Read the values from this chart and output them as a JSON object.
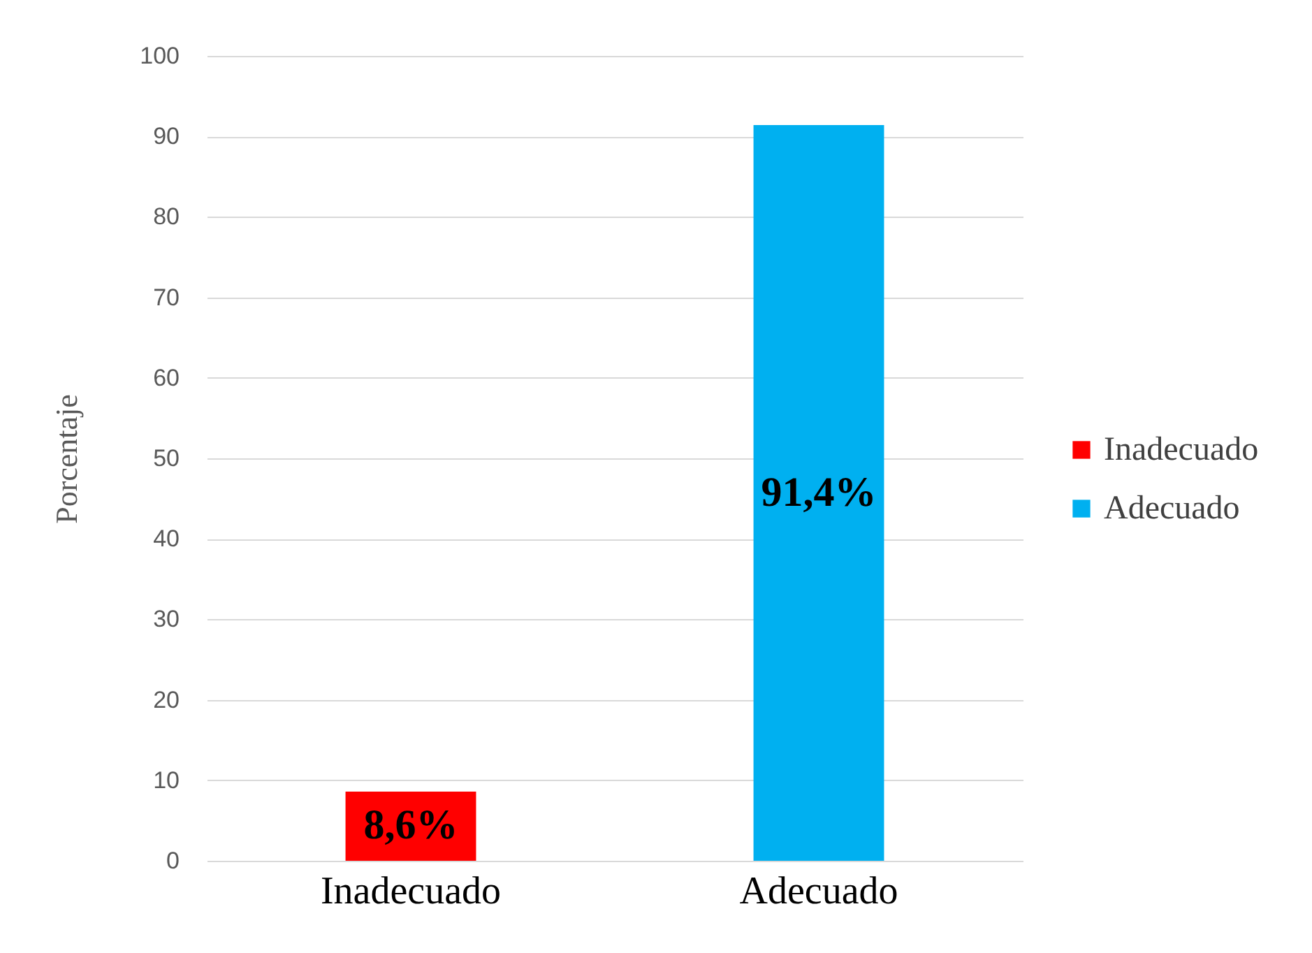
{
  "chart_data": {
    "type": "bar",
    "ylabel": "Porcentaje",
    "categories": [
      "Inadecuado",
      "Adecuado"
    ],
    "series": [
      {
        "name": "Inadecuado",
        "color": "#ff0000",
        "values": [
          8.6,
          null
        ],
        "value_labels": [
          "8,6%",
          null
        ]
      },
      {
        "name": "Adecuado",
        "color": "#00b0f0",
        "values": [
          null,
          91.4
        ],
        "value_labels": [
          null,
          "91,4%"
        ]
      }
    ],
    "ylim": [
      0,
      100
    ],
    "yticks": [
      0,
      10,
      20,
      30,
      40,
      50,
      60,
      70,
      80,
      90,
      100
    ],
    "grid": "y",
    "legend": "right"
  }
}
